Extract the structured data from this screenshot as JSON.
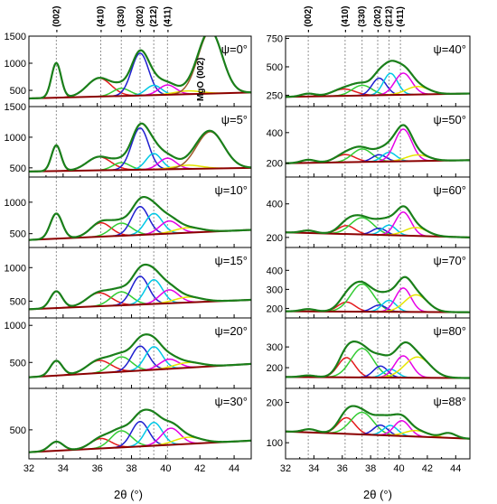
{
  "chart_data": {
    "type": "line",
    "xlabel": "2θ (°)",
    "xlim": [
      32,
      45
    ],
    "xticks": [
      "32",
      "34",
      "36",
      "38",
      "40",
      "42",
      "44"
    ],
    "peak_labels": [
      "(002)",
      "(410)",
      "(330)",
      "(202)",
      "(212)",
      "(411)"
    ],
    "peak_positions": [
      33.6,
      36.2,
      37.4,
      38.5,
      39.3,
      40.1
    ],
    "mgo_label": "MgO (002)",
    "colors": {
      "envelope": "#1a7f1a",
      "background": "#8b0000",
      "p002": "#000000",
      "p410": "#e41a1c",
      "p330": "#33cc33",
      "p202": "#1f1fd0",
      "p212": "#00c8e6",
      "p411": "#e600e6",
      "extra": "#e6e600",
      "mgo": "#a05a2c"
    },
    "panels": [
      {
        "column": "left",
        "psi": "ψ=0°",
        "ylim": [
          200,
          1500
        ],
        "yticks": [
          "500",
          "1000",
          "1500"
        ],
        "bg": [
          350,
          460
        ],
        "peaks": [
          {
            "c": "p002",
            "x": 33.6,
            "h": 640,
            "w": 0.28
          },
          {
            "c": "p410",
            "x": 36.1,
            "h": 340,
            "w": 0.7
          },
          {
            "c": "p330",
            "x": 37.4,
            "h": 140,
            "w": 0.5
          },
          {
            "c": "p202",
            "x": 38.5,
            "h": 780,
            "w": 0.5
          },
          {
            "c": "p212",
            "x": 39.3,
            "h": 180,
            "w": 0.45
          },
          {
            "c": "p411",
            "x": 40.1,
            "h": 180,
            "w": 0.5
          },
          {
            "c": "extra",
            "x": 41.3,
            "h": 60,
            "w": 0.8
          },
          {
            "c": "mgo",
            "x": 42.6,
            "h": 1150,
            "w": 0.7
          }
        ]
      },
      {
        "column": "left",
        "psi": "ψ=5°",
        "ylim": [
          350,
          1500
        ],
        "yticks": [
          "500",
          "1000",
          "1500"
        ],
        "bg": [
          440,
          500
        ],
        "peaks": [
          {
            "c": "p002",
            "x": 33.6,
            "h": 420,
            "w": 0.28
          },
          {
            "c": "p410",
            "x": 36.1,
            "h": 220,
            "w": 0.7
          },
          {
            "c": "p330",
            "x": 37.4,
            "h": 120,
            "w": 0.5
          },
          {
            "c": "p202",
            "x": 38.5,
            "h": 680,
            "w": 0.5
          },
          {
            "c": "p212",
            "x": 39.3,
            "h": 260,
            "w": 0.45
          },
          {
            "c": "p411",
            "x": 40.1,
            "h": 180,
            "w": 0.5
          },
          {
            "c": "extra",
            "x": 41.3,
            "h": 60,
            "w": 0.8
          },
          {
            "c": "mgo",
            "x": 42.6,
            "h": 600,
            "w": 0.8
          }
        ]
      },
      {
        "column": "left",
        "psi": "ψ=10°",
        "ylim": [
          280,
          1400
        ],
        "yticks": [
          "500",
          "1000"
        ],
        "bg": [
          400,
          560
        ],
        "peaks": [
          {
            "c": "p002",
            "x": 33.6,
            "h": 400,
            "w": 0.35
          },
          {
            "c": "p410",
            "x": 36.2,
            "h": 220,
            "w": 0.6
          },
          {
            "c": "p330",
            "x": 37.4,
            "h": 200,
            "w": 0.6
          },
          {
            "c": "p202",
            "x": 38.5,
            "h": 450,
            "w": 0.5
          },
          {
            "c": "p212",
            "x": 39.3,
            "h": 330,
            "w": 0.5
          },
          {
            "c": "p411",
            "x": 40.2,
            "h": 200,
            "w": 0.55
          },
          {
            "c": "extra",
            "x": 41.3,
            "h": 80,
            "w": 0.8
          }
        ]
      },
      {
        "column": "left",
        "psi": "ψ=15°",
        "ylim": [
          250,
          1300
        ],
        "yticks": [
          "500",
          "1000"
        ],
        "bg": [
          380,
          520
        ],
        "peaks": [
          {
            "c": "p002",
            "x": 33.6,
            "h": 250,
            "w": 0.35
          },
          {
            "c": "p410",
            "x": 36.1,
            "h": 200,
            "w": 0.7
          },
          {
            "c": "p330",
            "x": 37.4,
            "h": 200,
            "w": 0.6
          },
          {
            "c": "p202",
            "x": 38.5,
            "h": 420,
            "w": 0.5
          },
          {
            "c": "p212",
            "x": 39.3,
            "h": 360,
            "w": 0.5
          },
          {
            "c": "p411",
            "x": 40.2,
            "h": 200,
            "w": 0.55
          },
          {
            "c": "extra",
            "x": 41.3,
            "h": 80,
            "w": 0.8
          }
        ]
      },
      {
        "column": "left",
        "psi": "ψ=20°",
        "ylim": [
          150,
          1100
        ],
        "yticks": [
          "500",
          "1000"
        ],
        "bg": [
          300,
          480
        ],
        "peaks": [
          {
            "c": "p002",
            "x": 33.6,
            "h": 200,
            "w": 0.35
          },
          {
            "c": "p410",
            "x": 36.1,
            "h": 170,
            "w": 0.7
          },
          {
            "c": "p330",
            "x": 37.4,
            "h": 200,
            "w": 0.6
          },
          {
            "c": "p202",
            "x": 38.5,
            "h": 330,
            "w": 0.5
          },
          {
            "c": "p212",
            "x": 39.3,
            "h": 310,
            "w": 0.5
          },
          {
            "c": "p411",
            "x": 40.2,
            "h": 130,
            "w": 0.55
          },
          {
            "c": "extra",
            "x": 41.3,
            "h": 70,
            "w": 0.8
          }
        ]
      },
      {
        "column": "left",
        "psi": "ψ=30°",
        "ylim": [
          150,
          1000
        ],
        "yticks": [
          "500"
        ],
        "bg": [
          230,
          370
        ],
        "peaks": [
          {
            "c": "p002",
            "x": 33.6,
            "h": 110,
            "w": 0.4
          },
          {
            "c": "p410",
            "x": 36.2,
            "h": 120,
            "w": 0.6
          },
          {
            "c": "p330",
            "x": 37.4,
            "h": 200,
            "w": 0.6
          },
          {
            "c": "p202",
            "x": 38.5,
            "h": 300,
            "w": 0.5
          },
          {
            "c": "p212",
            "x": 39.3,
            "h": 280,
            "w": 0.5
          },
          {
            "c": "p411",
            "x": 40.3,
            "h": 200,
            "w": 0.55
          },
          {
            "c": "extra",
            "x": 41.3,
            "h": 80,
            "w": 0.8
          }
        ]
      },
      {
        "column": "right",
        "psi": "ψ=40°",
        "ylim": [
          150,
          770
        ],
        "yticks": [
          "250",
          "500",
          "750"
        ],
        "bg": [
          235,
          265
        ],
        "peaks": [
          {
            "c": "p002",
            "x": 33.6,
            "h": 25,
            "w": 0.5
          },
          {
            "c": "p410",
            "x": 36.1,
            "h": 60,
            "w": 0.8
          },
          {
            "c": "p330",
            "x": 37.4,
            "h": 90,
            "w": 0.7
          },
          {
            "c": "p202",
            "x": 38.6,
            "h": 150,
            "w": 0.5
          },
          {
            "c": "p212",
            "x": 39.4,
            "h": 190,
            "w": 0.5
          },
          {
            "c": "p411",
            "x": 40.3,
            "h": 190,
            "w": 0.6
          },
          {
            "c": "extra",
            "x": 41.3,
            "h": 70,
            "w": 0.8
          }
        ]
      },
      {
        "column": "right",
        "psi": "ψ=50°",
        "ylim": [
          110,
          570
        ],
        "yticks": [
          "200",
          "400"
        ],
        "bg": [
          200,
          220
        ],
        "peaks": [
          {
            "c": "p002",
            "x": 33.6,
            "h": 20,
            "w": 0.5
          },
          {
            "c": "p410",
            "x": 36.2,
            "h": 50,
            "w": 0.7
          },
          {
            "c": "p330",
            "x": 37.4,
            "h": 85,
            "w": 0.7
          },
          {
            "c": "p202",
            "x": 38.6,
            "h": 45,
            "w": 0.5
          },
          {
            "c": "p212",
            "x": 39.3,
            "h": 60,
            "w": 0.5
          },
          {
            "c": "p411",
            "x": 40.3,
            "h": 210,
            "w": 0.6
          },
          {
            "c": "extra",
            "x": 41.3,
            "h": 40,
            "w": 0.8
          }
        ]
      },
      {
        "column": "right",
        "psi": "ψ=60°",
        "ylim": [
          140,
          560
        ],
        "yticks": [
          "200",
          "400"
        ],
        "bg": [
          230,
          200
        ],
        "peaks": [
          {
            "c": "p002",
            "x": 33.6,
            "h": 15,
            "w": 0.5
          },
          {
            "c": "p410",
            "x": 36.3,
            "h": 50,
            "w": 0.6
          },
          {
            "c": "p330",
            "x": 37.4,
            "h": 100,
            "w": 0.8
          },
          {
            "c": "p202",
            "x": 38.6,
            "h": 40,
            "w": 0.5
          },
          {
            "c": "p212",
            "x": 39.3,
            "h": 60,
            "w": 0.5
          },
          {
            "c": "p411",
            "x": 40.3,
            "h": 140,
            "w": 0.55
          },
          {
            "c": "extra",
            "x": 41.2,
            "h": 50,
            "w": 0.8
          }
        ]
      },
      {
        "column": "right",
        "psi": "ψ=70°",
        "ylim": [
          150,
          520
        ],
        "yticks": [
          "200",
          "300",
          "400"
        ],
        "bg": [
          185,
          180
        ],
        "peaks": [
          {
            "c": "p002",
            "x": 33.6,
            "h": 12,
            "w": 0.5
          },
          {
            "c": "p410",
            "x": 36.3,
            "h": 50,
            "w": 0.6
          },
          {
            "c": "p330",
            "x": 37.4,
            "h": 145,
            "w": 0.8
          },
          {
            "c": "p202",
            "x": 38.6,
            "h": 35,
            "w": 0.5
          },
          {
            "c": "p212",
            "x": 39.3,
            "h": 60,
            "w": 0.5
          },
          {
            "c": "p411",
            "x": 40.3,
            "h": 125,
            "w": 0.55
          },
          {
            "c": "extra",
            "x": 41.2,
            "h": 90,
            "w": 0.8
          }
        ]
      },
      {
        "column": "right",
        "psi": "ψ=80°",
        "ylim": [
          100,
          440
        ],
        "yticks": [
          "200",
          "300"
        ],
        "bg": [
          155,
          150
        ],
        "peaks": [
          {
            "c": "p002",
            "x": 33.6,
            "h": 8,
            "w": 0.5
          },
          {
            "c": "p410",
            "x": 36.3,
            "h": 95,
            "w": 0.6
          },
          {
            "c": "p330",
            "x": 37.4,
            "h": 140,
            "w": 0.8
          },
          {
            "c": "p202",
            "x": 38.7,
            "h": 55,
            "w": 0.5
          },
          {
            "c": "p212",
            "x": 39.4,
            "h": 40,
            "w": 0.5
          },
          {
            "c": "p411",
            "x": 40.3,
            "h": 105,
            "w": 0.6
          },
          {
            "c": "extra",
            "x": 41.3,
            "h": 100,
            "w": 0.9
          }
        ]
      },
      {
        "column": "right",
        "psi": "ψ=88°",
        "ylim": [
          60,
          235
        ],
        "yticks": [
          "100",
          "200"
        ],
        "bg": [
          128,
          110
        ],
        "peaks": [
          {
            "c": "p002",
            "x": 33.7,
            "h": 8,
            "w": 0.5
          },
          {
            "c": "p410",
            "x": 36.3,
            "h": 40,
            "w": 0.6
          },
          {
            "c": "p330",
            "x": 37.4,
            "h": 55,
            "w": 0.8
          },
          {
            "c": "p202",
            "x": 38.7,
            "h": 25,
            "w": 0.5
          },
          {
            "c": "p212",
            "x": 39.4,
            "h": 25,
            "w": 0.5
          },
          {
            "c": "p411",
            "x": 40.2,
            "h": 38,
            "w": 0.55
          },
          {
            "c": "extra",
            "x": 41.2,
            "h": 15,
            "w": 0.8
          },
          {
            "c": "extra",
            "x": 43.5,
            "h": 12,
            "w": 0.5
          }
        ]
      }
    ]
  }
}
